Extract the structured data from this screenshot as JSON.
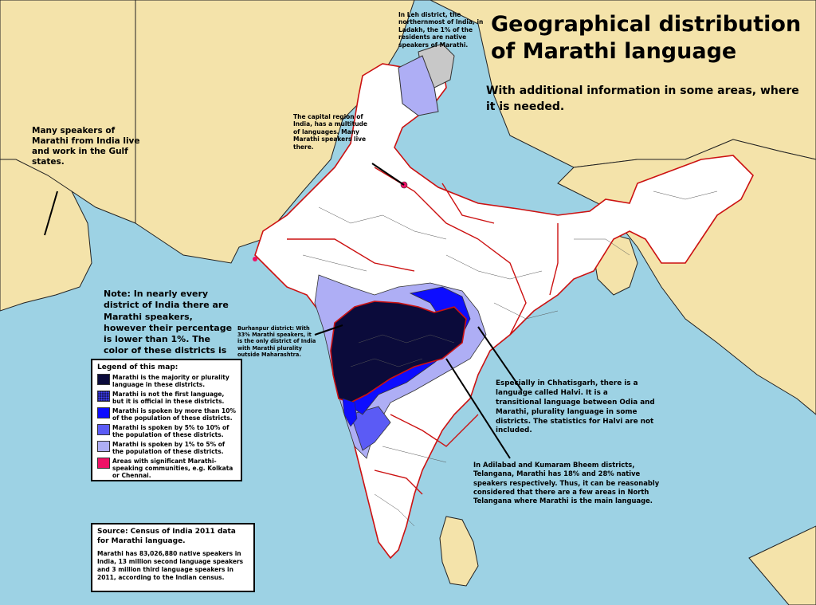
{
  "title": "Geographical distribution\nof Marathi language",
  "subtitle": "With additional information in some areas, where it is needed.",
  "annotations": {
    "leh": "In Leh district, the northernmost of India, in Ladakh, the 1% of the residents are native speakers of Marathi.",
    "delhi": "The capital region of India, has a multitude of languages. Many Marathi speakers live there.",
    "gulf": "Many speakers of Marathi from India live and work in the Gulf states.",
    "note": "Note: In nearly every district of India there are Marathi speakers, however their percentage is lower than 1%. The color of these districts is white.",
    "burhanpur": "Burhanpur district: With 33% Marathi speakers, it is the only district of India with Marathi plurality outside Maharashtra.",
    "halvi": "Especially in Chhatisgarh, there is a language called Halvi. It is a transitional language between Odia and Marathi, plurality language in some districts. The statistics for Halvi are not included.",
    "telangana": "In Adilabad and Kumaram Bheem districts, Telangana, Marathi has 18% and 28% native speakers respectively. Thus, it can be reasonably considered that there are a few areas in North Telangana where Marathi is the main language."
  },
  "legend": {
    "title": "Legend of this map:",
    "items": [
      {
        "label": "Marathi is the majority or plurality language in these districts.",
        "color": "#0b0b3b"
      },
      {
        "label": "Marathi is not the first language, but it is official in these districts.",
        "color": "#1a1a6e"
      },
      {
        "label": "Marathi is spoken by more than 10% of the population of these districts.",
        "color": "#0d0dff"
      },
      {
        "label": "Marathi is spoken by 5% to 10% of the population of these districts.",
        "color": "#5b5bf5"
      },
      {
        "label": "Marathi is spoken by 1% to 5% of the population of these districts.",
        "color": "#aeaef5"
      },
      {
        "label": "Areas with significant Marathi-speaking communities, e.g. Kolkata or Chennai.",
        "color": "#ee1166"
      }
    ]
  },
  "source": {
    "title": "Source: Census of India 2011 data for Marathi language.",
    "text": "Marathi has 83,026,880 native speakers in India, 13 million second language speakers and 3 million third language speakers in 2011, according to the Indian census."
  },
  "colors": {
    "sea": "#9dd2e4",
    "land": "#f4e3aa",
    "india": "#ffffff",
    "disputed": "#c8c8c8",
    "state_border": "#cc1111",
    "district_border": "#444444",
    "majority": "#0b0b3b",
    "over10": "#0d0dff",
    "five_to_ten": "#5b5bf5",
    "one_to_five": "#aeaef5",
    "community": "#ee1166"
  }
}
